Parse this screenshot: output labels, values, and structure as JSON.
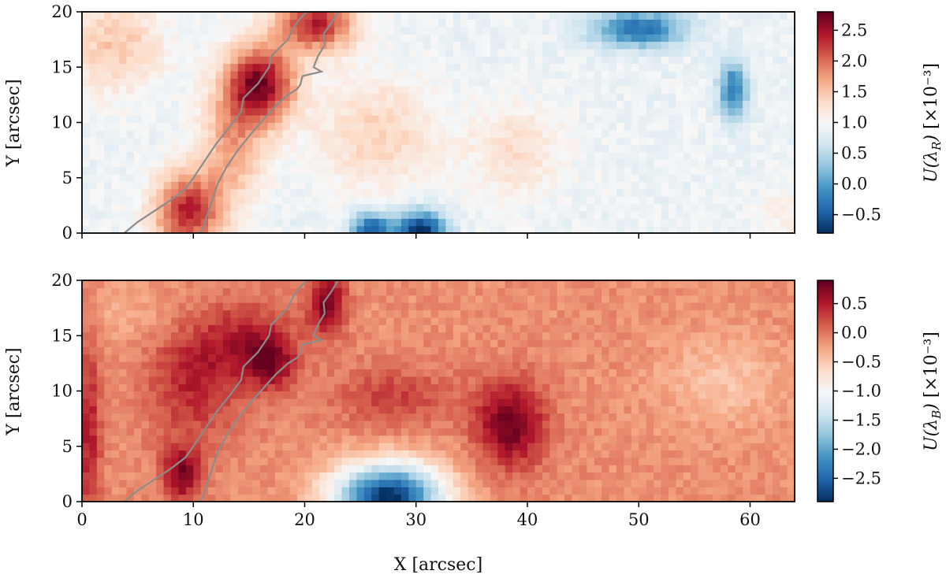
{
  "chart_data": [
    {
      "type": "heatmap",
      "panel": "top",
      "ylabel": "Y [arcsec]",
      "xlabel": "",
      "xlim": [
        0,
        64
      ],
      "ylim": [
        0,
        20
      ],
      "xticks": [
        0,
        10,
        20,
        30,
        40,
        50,
        60
      ],
      "yticks": [
        0,
        5,
        10,
        15,
        20
      ],
      "ytick_labels": [
        "0",
        "5",
        "10",
        "15",
        "20"
      ],
      "show_xtick_labels": false,
      "colormap": "RdBu_r",
      "color_range": [
        -0.8,
        2.8
      ],
      "colorbar_label": "U(λ_R) [×10⁻³]",
      "colorbar_ticks": [
        -0.5,
        0.0,
        0.5,
        1.0,
        1.5,
        2.0,
        2.5
      ],
      "colorbar_tick_labels": [
        "−0.5",
        "0.0",
        "0.5",
        "1.0",
        "1.5",
        "2.0",
        "2.5"
      ],
      "features": [
        {
          "x": 16,
          "y": 13.5,
          "value": 2.7,
          "sx": 2.2,
          "sy": 2.5
        },
        {
          "x": 21,
          "y": 19,
          "value": 2.4,
          "sx": 2.5,
          "sy": 1.8
        },
        {
          "x": 9.5,
          "y": 2,
          "value": 2.4,
          "sx": 2.2,
          "sy": 2.5
        },
        {
          "x": 13.5,
          "y": 8,
          "value": 1.7,
          "sx": 2.0,
          "sy": 3.5
        },
        {
          "x": 3,
          "y": 17,
          "value": 1.5,
          "sx": 3,
          "sy": 3
        },
        {
          "x": 26.5,
          "y": 9,
          "value": 1.4,
          "sx": 4,
          "sy": 3.5
        },
        {
          "x": 39,
          "y": 7.5,
          "value": 1.3,
          "sx": 3,
          "sy": 3
        },
        {
          "x": 63,
          "y": 1.5,
          "value": 1.1,
          "sx": 2,
          "sy": 2
        },
        {
          "x": 30.5,
          "y": 0.3,
          "value": -0.8,
          "sx": 1.6,
          "sy": 1.2
        },
        {
          "x": 26,
          "y": 0.5,
          "value": -0.45,
          "sx": 1.3,
          "sy": 1.0
        },
        {
          "x": 50,
          "y": 18.5,
          "value": -0.35,
          "sx": 3,
          "sy": 1.2
        },
        {
          "x": 58.5,
          "y": 13,
          "value": -0.3,
          "sx": 0.9,
          "sy": 1.8
        }
      ],
      "background_value": 0.9
    },
    {
      "type": "heatmap",
      "panel": "bottom",
      "ylabel": "Y [arcsec]",
      "xlabel": "X [arcsec]",
      "xlim": [
        0,
        64
      ],
      "ylim": [
        0,
        20
      ],
      "xticks": [
        0,
        10,
        20,
        30,
        40,
        50,
        60
      ],
      "xtick_labels": [
        "0",
        "10",
        "20",
        "30",
        "40",
        "50",
        "60"
      ],
      "yticks": [
        0,
        5,
        10,
        15,
        20
      ],
      "ytick_labels": [
        "0",
        "5",
        "10",
        "15",
        "20"
      ],
      "show_xtick_labels": true,
      "colormap": "RdBu_r",
      "color_range": [
        -2.9,
        0.9
      ],
      "colorbar_label": "U(λ_B) [×10⁻³]",
      "colorbar_ticks": [
        -2.5,
        -2.0,
        -1.5,
        -1.0,
        -0.5,
        0.0,
        0.5
      ],
      "colorbar_tick_labels": [
        "−2.5",
        "−2.0",
        "−1.5",
        "−1.0",
        "−0.5",
        "0.0",
        "0.5"
      ],
      "features": [
        {
          "x": 38.5,
          "y": 7,
          "value": 0.85,
          "sx": 2.2,
          "sy": 2.8
        },
        {
          "x": 22,
          "y": 18,
          "value": 0.8,
          "sx": 1.2,
          "sy": 2.0
        },
        {
          "x": 9,
          "y": 2.5,
          "value": 0.75,
          "sx": 1.2,
          "sy": 1.8
        },
        {
          "x": 17,
          "y": 12.5,
          "value": 0.6,
          "sx": 1.5,
          "sy": 1.6
        },
        {
          "x": 10,
          "y": 11,
          "value": 0.45,
          "sx": 3,
          "sy": 4
        },
        {
          "x": 15,
          "y": 14.5,
          "value": 0.45,
          "sx": 3,
          "sy": 2.5
        },
        {
          "x": 28,
          "y": 9.5,
          "value": 0.3,
          "sx": 4,
          "sy": 2
        },
        {
          "x": 0.6,
          "y": 6,
          "value": 0.5,
          "sx": 0.8,
          "sy": 6
        },
        {
          "x": 27.5,
          "y": 0.4,
          "value": -2.9,
          "sx": 3.5,
          "sy": 2.2
        },
        {
          "x": 57.5,
          "y": 11,
          "value": -0.45,
          "sx": 4,
          "sy": 3
        },
        {
          "x": 5,
          "y": 17,
          "value": -0.3,
          "sx": 4,
          "sy": 2
        }
      ],
      "background_value": -0.12
    }
  ],
  "contour_lines": [
    {
      "name": "left boundary",
      "points": [
        [
          3.8,
          0
        ],
        [
          5,
          1
        ],
        [
          6.5,
          2
        ],
        [
          8,
          3
        ],
        [
          9.3,
          4
        ],
        [
          10,
          5
        ],
        [
          11,
          6.5
        ],
        [
          12,
          8
        ],
        [
          13.2,
          9.5
        ],
        [
          14.3,
          11
        ],
        [
          14.5,
          12.2
        ],
        [
          15.8,
          13.5
        ],
        [
          16.8,
          15
        ],
        [
          17,
          16
        ],
        [
          18.5,
          17.5
        ],
        [
          19,
          18.6
        ],
        [
          19.6,
          19.4
        ],
        [
          20.2,
          20
        ]
      ]
    },
    {
      "name": "right boundary",
      "points": [
        [
          23,
          20
        ],
        [
          22.4,
          19
        ],
        [
          21.7,
          18
        ],
        [
          21.8,
          17
        ],
        [
          21.2,
          16
        ],
        [
          20.8,
          15
        ],
        [
          21.5,
          14.6
        ],
        [
          19.8,
          14.2
        ],
        [
          19.6,
          13.4
        ],
        [
          19.3,
          13
        ],
        [
          18.5,
          12.5
        ],
        [
          17.4,
          11.5
        ],
        [
          16.5,
          10.5
        ],
        [
          15.2,
          9
        ],
        [
          14,
          7.5
        ],
        [
          13,
          6
        ],
        [
          12.2,
          4.5
        ],
        [
          11.7,
          3
        ],
        [
          11.2,
          1.5
        ],
        [
          10.9,
          0.5
        ],
        [
          10.6,
          0
        ]
      ]
    }
  ],
  "colors": {
    "contour": "#8c8c8c",
    "axes": "#000000",
    "background": "#ffffff"
  }
}
